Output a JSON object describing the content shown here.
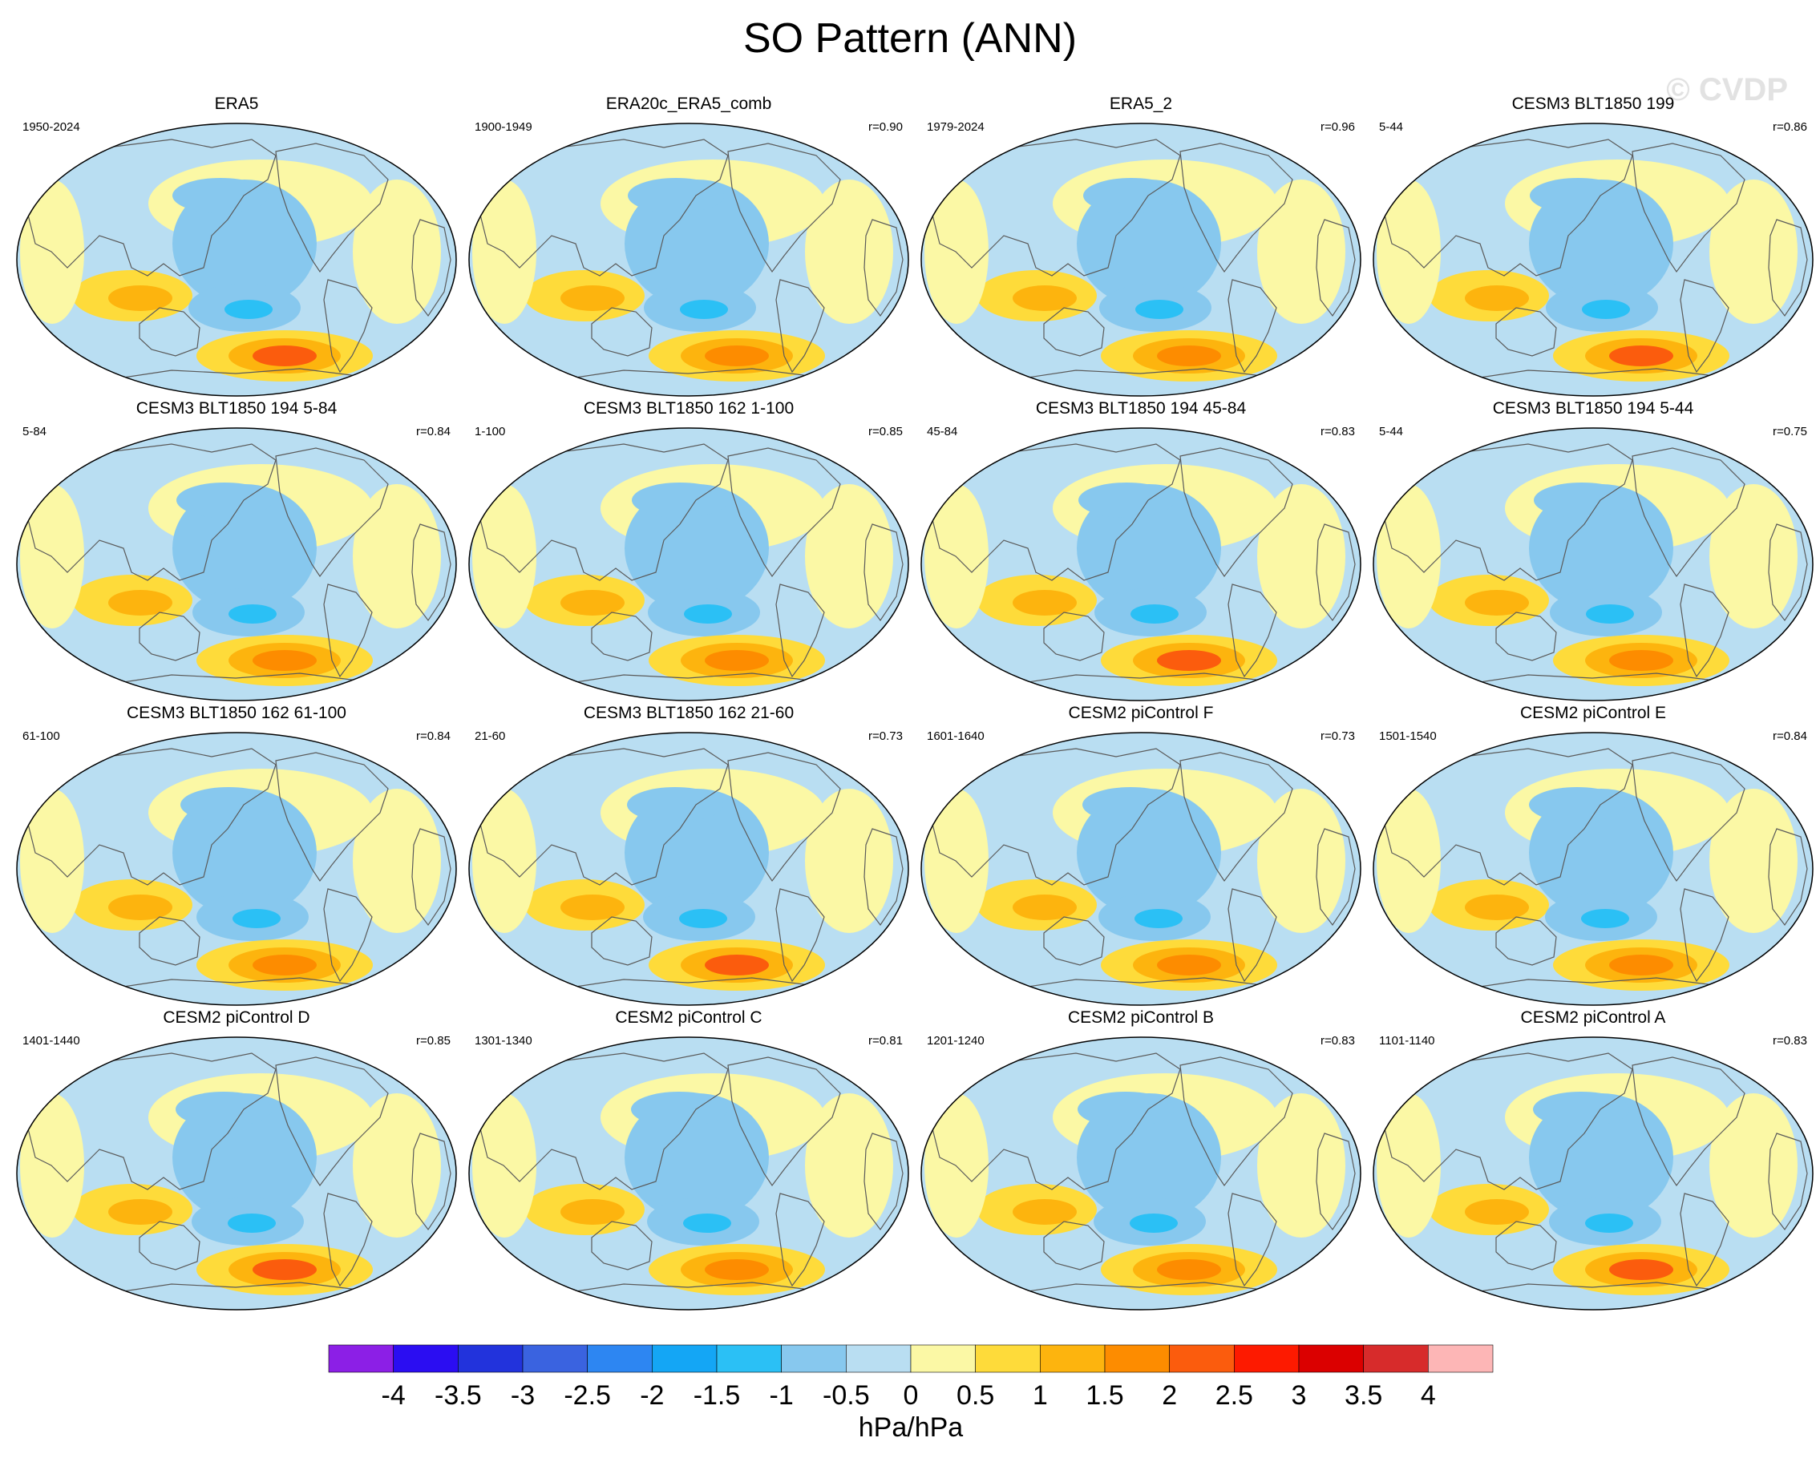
{
  "title": "SO Pattern (ANN)",
  "watermark": "© CVDP",
  "panels": [
    {
      "title": "ERA5",
      "years": "1950-2024",
      "corr": ""
    },
    {
      "title": "ERA20c_ERA5_comb",
      "years": "1900-1949",
      "corr": "r=0.90"
    },
    {
      "title": "ERA5_2",
      "years": "1979-2024",
      "corr": "r=0.96"
    },
    {
      "title": "CESM3 BLT1850 199",
      "years": "5-44",
      "corr": "r=0.86"
    },
    {
      "title": "CESM3 BLT1850 194 5-84",
      "years": "5-84",
      "corr": "r=0.84"
    },
    {
      "title": "CESM3 BLT1850 162 1-100",
      "years": "1-100",
      "corr": "r=0.85"
    },
    {
      "title": "CESM3 BLT1850 194 45-84",
      "years": "45-84",
      "corr": "r=0.83"
    },
    {
      "title": "CESM3 BLT1850 194 5-44",
      "years": "5-44",
      "corr": "r=0.75"
    },
    {
      "title": "CESM3 BLT1850 162 61-100",
      "years": "61-100",
      "corr": "r=0.84"
    },
    {
      "title": "CESM3 BLT1850 162 21-60",
      "years": "21-60",
      "corr": "r=0.73"
    },
    {
      "title": "CESM2 piControl F",
      "years": "1601-1640",
      "corr": "r=0.73"
    },
    {
      "title": "CESM2 piControl E",
      "years": "1501-1540",
      "corr": "r=0.84"
    },
    {
      "title": "CESM2 piControl D",
      "years": "1401-1440",
      "corr": "r=0.85"
    },
    {
      "title": "CESM2 piControl C",
      "years": "1301-1340",
      "corr": "r=0.81"
    },
    {
      "title": "CESM2 piControl B",
      "years": "1201-1240",
      "corr": "r=0.83"
    },
    {
      "title": "CESM2 piControl A",
      "years": "1101-1140",
      "corr": "r=0.83"
    }
  ],
  "colorbar": {
    "unit": "hPa/hPa",
    "labels": [
      "-4",
      "-3.5",
      "-3",
      "-2.5",
      "-2",
      "-1.5",
      "-1",
      "-0.5",
      "0",
      "0.5",
      "1",
      "1.5",
      "2",
      "2.5",
      "3",
      "3.5",
      "4"
    ],
    "colors": [
      "#8c1fe6",
      "#2b0df2",
      "#2233dc",
      "#3a63e0",
      "#2d86f2",
      "#14a6f5",
      "#2bc0f5",
      "#87c8ee",
      "#b9def2",
      "#fbf8a5",
      "#fedb3a",
      "#fdb40e",
      "#fd8c00",
      "#fb5c0d",
      "#fd1a00",
      "#db0000",
      "#d72b2b",
      "#fdb6b6"
    ]
  },
  "palette": {
    "ocean_neg": "#b9def2",
    "pos_light": "#fbf8a5",
    "neg_mid": "#87c8ee",
    "neg_strong": "#2bc0f5",
    "pos_mid": "#fedb3a",
    "pos_strong": "#fdb40e",
    "pos_orange": "#fd8c00",
    "pos_red": "#fb5c0d",
    "coast": "#5a5a5a"
  }
}
